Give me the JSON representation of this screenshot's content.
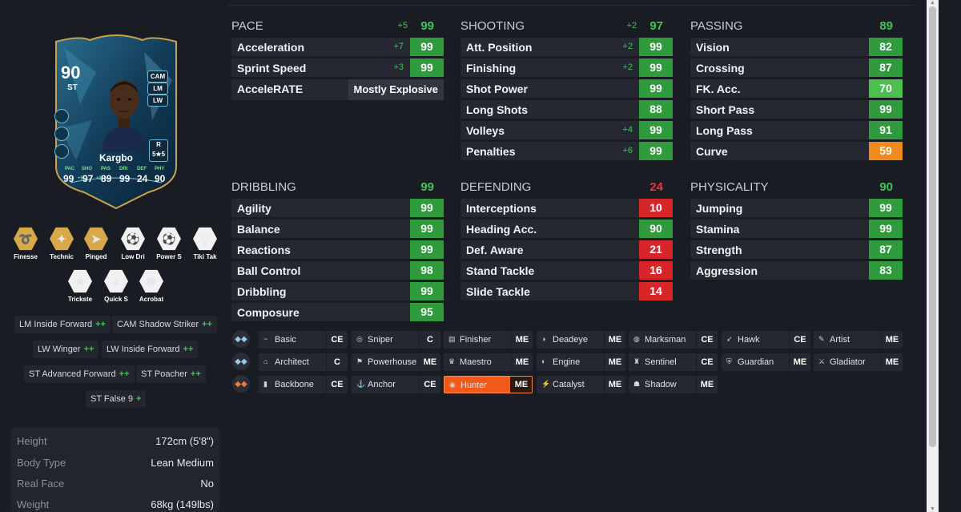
{
  "card": {
    "rating": "90",
    "position": "ST",
    "alt_positions": [
      "CAM",
      "LM",
      "LW"
    ],
    "name": "Kargbo",
    "weak_foot_label": "R",
    "skill_moves": "5★5",
    "stat_labels": [
      "PAC",
      "SHO",
      "PAS",
      "DRI",
      "DEF",
      "PHY"
    ],
    "stat_values": [
      "99",
      "97",
      "89",
      "99",
      "24",
      "90"
    ],
    "stat_bonus": [
      "+5",
      "+2",
      "",
      "",
      "",
      ""
    ]
  },
  "playstyles_plus": [
    {
      "label": "Finesse",
      "icon": "finesse-shot-icon"
    },
    {
      "label": "Technic",
      "icon": "technical-icon"
    },
    {
      "label": "Pinged",
      "icon": "pinged-pass-icon"
    }
  ],
  "playstyles": [
    {
      "label": "Low Dri",
      "icon": "low-driven-shot-icon"
    },
    {
      "label": "Power S",
      "icon": "power-shot-icon"
    },
    {
      "label": "Tiki Tak",
      "icon": "tiki-taka-icon"
    },
    {
      "label": "Trickste",
      "icon": "trickster-icon"
    },
    {
      "label": "Quick S",
      "icon": "quick-step-icon"
    },
    {
      "label": "Acrobat",
      "icon": "acrobatic-icon"
    }
  ],
  "positions": [
    {
      "pos": "LM",
      "role": "Inside Forward",
      "plus": "++"
    },
    {
      "pos": "CAM",
      "role": "Shadow Striker",
      "plus": "++"
    },
    {
      "pos": "LW",
      "role": "Winger",
      "plus": "++"
    },
    {
      "pos": "LW",
      "role": "Inside Forward",
      "plus": "++"
    },
    {
      "pos": "ST",
      "role": "Advanced Forward",
      "plus": "++"
    },
    {
      "pos": "ST",
      "role": "Poacher",
      "plus": "++"
    },
    {
      "pos": "ST",
      "role": "False 9",
      "plus": "+"
    }
  ],
  "info": [
    {
      "k": "Height",
      "v": "172cm (5'8\")"
    },
    {
      "k": "Body Type",
      "v": "Lean Medium"
    },
    {
      "k": "Real Face",
      "v": "No"
    },
    {
      "k": "Weight",
      "v": "68kg (149lbs)"
    }
  ],
  "stats": {
    "pace": {
      "title": "PACE",
      "bonus": "+5",
      "value": "99",
      "rows": [
        {
          "l": "Acceleration",
          "b": "+7",
          "v": "99",
          "c": "green"
        },
        {
          "l": "Sprint Speed",
          "b": "+3",
          "v": "99",
          "c": "green"
        }
      ],
      "accelerate_label": "AcceleRATE",
      "accelerate_value": "Mostly Explosive"
    },
    "shooting": {
      "title": "SHOOTING",
      "bonus": "+2",
      "value": "97",
      "rows": [
        {
          "l": "Att. Position",
          "b": "+2",
          "v": "99",
          "c": "green"
        },
        {
          "l": "Finishing",
          "b": "+2",
          "v": "99",
          "c": "green"
        },
        {
          "l": "Shot Power",
          "b": "",
          "v": "99",
          "c": "green"
        },
        {
          "l": "Long Shots",
          "b": "",
          "v": "88",
          "c": "green"
        },
        {
          "l": "Volleys",
          "b": "+4",
          "v": "99",
          "c": "green"
        },
        {
          "l": "Penalties",
          "b": "+6",
          "v": "99",
          "c": "green"
        }
      ]
    },
    "passing": {
      "title": "PASSING",
      "bonus": "",
      "value": "89",
      "rows": [
        {
          "l": "Vision",
          "b": "",
          "v": "82",
          "c": "green"
        },
        {
          "l": "Crossing",
          "b": "",
          "v": "87",
          "c": "green"
        },
        {
          "l": "FK. Acc.",
          "b": "",
          "v": "70",
          "c": "lgreen"
        },
        {
          "l": "Short Pass",
          "b": "",
          "v": "99",
          "c": "green"
        },
        {
          "l": "Long Pass",
          "b": "",
          "v": "91",
          "c": "green"
        },
        {
          "l": "Curve",
          "b": "",
          "v": "59",
          "c": "orange"
        }
      ]
    },
    "dribbling": {
      "title": "DRIBBLING",
      "bonus": "",
      "value": "99",
      "rows": [
        {
          "l": "Agility",
          "b": "",
          "v": "99",
          "c": "green"
        },
        {
          "l": "Balance",
          "b": "",
          "v": "99",
          "c": "green"
        },
        {
          "l": "Reactions",
          "b": "",
          "v": "99",
          "c": "green"
        },
        {
          "l": "Ball Control",
          "b": "",
          "v": "98",
          "c": "green"
        },
        {
          "l": "Dribbling",
          "b": "",
          "v": "99",
          "c": "green"
        },
        {
          "l": "Composure",
          "b": "",
          "v": "95",
          "c": "green"
        }
      ]
    },
    "defending": {
      "title": "DEFENDING",
      "bonus": "",
      "value": "24",
      "rows": [
        {
          "l": "Interceptions",
          "b": "",
          "v": "10",
          "c": "red"
        },
        {
          "l": "Heading Acc.",
          "b": "",
          "v": "90",
          "c": "green"
        },
        {
          "l": "Def. Aware",
          "b": "",
          "v": "21",
          "c": "red"
        },
        {
          "l": "Stand Tackle",
          "b": "",
          "v": "16",
          "c": "red"
        },
        {
          "l": "Slide Tackle",
          "b": "",
          "v": "14",
          "c": "red"
        }
      ]
    },
    "physicality": {
      "title": "PHYSICALITY",
      "bonus": "",
      "value": "90",
      "rows": [
        {
          "l": "Jumping",
          "b": "",
          "v": "99",
          "c": "green"
        },
        {
          "l": "Stamina",
          "b": "",
          "v": "99",
          "c": "green"
        },
        {
          "l": "Strength",
          "b": "",
          "v": "87",
          "c": "green"
        },
        {
          "l": "Aggression",
          "b": "",
          "v": "83",
          "c": "green"
        }
      ]
    }
  },
  "chem_rows": [
    [
      {
        "icon": "~",
        "name": "Basic",
        "code": "CE"
      },
      {
        "icon": "◎",
        "name": "Sniper",
        "code": "C"
      },
      {
        "icon": "▤",
        "name": "Finisher",
        "code": "ME"
      },
      {
        "icon": "◑",
        "name": "Deadeye",
        "code": "ME"
      },
      {
        "icon": "◍",
        "name": "Marksman",
        "code": "CE"
      },
      {
        "icon": "➶",
        "name": "Hawk",
        "code": "CE"
      },
      {
        "icon": "✎",
        "name": "Artist",
        "code": "ME"
      }
    ],
    [
      {
        "icon": "⌂",
        "name": "Architect",
        "code": "C"
      },
      {
        "icon": "⚑",
        "name": "Powerhouse",
        "code": "ME"
      },
      {
        "icon": "♛",
        "name": "Maestro",
        "code": "ME"
      },
      {
        "icon": "◐",
        "name": "Engine",
        "code": "ME"
      },
      {
        "icon": "♜",
        "name": "Sentinel",
        "code": "CE"
      },
      {
        "icon": "⛨",
        "name": "Guardian",
        "code": "ME"
      },
      {
        "icon": "⚔",
        "name": "Gladiator",
        "code": "ME"
      }
    ],
    [
      {
        "icon": "▮",
        "name": "Backbone",
        "code": "CE"
      },
      {
        "icon": "⚓",
        "name": "Anchor",
        "code": "CE"
      },
      {
        "icon": "◉",
        "name": "Hunter",
        "code": "ME",
        "active": true
      },
      {
        "icon": "⚡",
        "name": "Catalyst",
        "code": "ME"
      },
      {
        "icon": "☗",
        "name": "Shadow",
        "code": "ME"
      }
    ]
  ],
  "colors": {
    "green": "#2f9b3d",
    "red": "#d6262a",
    "orange": "#f08a1e",
    "accent": "#f05a1a"
  }
}
